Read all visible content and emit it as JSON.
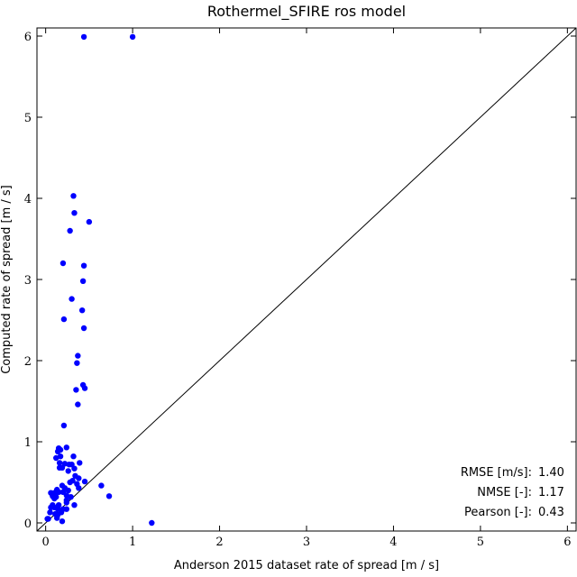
{
  "chart_data": {
    "type": "scatter",
    "title": "Rothermel_SFIRE ros model",
    "xlabel": "Anderson 2015 dataset rate of spread [m / s]",
    "ylabel": "Computed rate of spread [m / s]",
    "xlim": [
      -0.1,
      6.1
    ],
    "ylim": [
      -0.1,
      6.1
    ],
    "xticks": [
      "0",
      "1",
      "2",
      "3",
      "4",
      "5",
      "6"
    ],
    "yticks": [
      "0",
      "1",
      "2",
      "3",
      "4",
      "5",
      "6"
    ],
    "grid": false,
    "identity_line": true,
    "point_color": "#0000ff",
    "line_color": "#000000",
    "points": [
      [
        0.44,
        5.99
      ],
      [
        1.0,
        5.99
      ],
      [
        0.32,
        4.03
      ],
      [
        0.33,
        3.82
      ],
      [
        0.5,
        3.71
      ],
      [
        0.28,
        3.6
      ],
      [
        0.2,
        3.2
      ],
      [
        0.44,
        3.17
      ],
      [
        0.43,
        2.98
      ],
      [
        0.3,
        2.76
      ],
      [
        0.42,
        2.62
      ],
      [
        0.21,
        2.51
      ],
      [
        0.44,
        2.4
      ],
      [
        0.37,
        2.06
      ],
      [
        0.36,
        1.97
      ],
      [
        0.43,
        1.7
      ],
      [
        0.45,
        1.66
      ],
      [
        0.35,
        1.64
      ],
      [
        0.37,
        1.46
      ],
      [
        0.21,
        1.2
      ],
      [
        0.15,
        0.92
      ],
      [
        0.24,
        0.93
      ],
      [
        0.17,
        0.9
      ],
      [
        0.14,
        0.88
      ],
      [
        0.17,
        0.82
      ],
      [
        0.32,
        0.82
      ],
      [
        0.12,
        0.8
      ],
      [
        0.16,
        0.74
      ],
      [
        0.22,
        0.73
      ],
      [
        0.27,
        0.72
      ],
      [
        0.3,
        0.72
      ],
      [
        0.39,
        0.74
      ],
      [
        0.16,
        0.68
      ],
      [
        0.19,
        0.68
      ],
      [
        0.33,
        0.67
      ],
      [
        0.26,
        0.64
      ],
      [
        0.34,
        0.58
      ],
      [
        0.38,
        0.55
      ],
      [
        0.31,
        0.52
      ],
      [
        0.28,
        0.5
      ],
      [
        0.45,
        0.51
      ],
      [
        0.36,
        0.48
      ],
      [
        0.38,
        0.43
      ],
      [
        0.19,
        0.46
      ],
      [
        0.22,
        0.43
      ],
      [
        0.13,
        0.41
      ],
      [
        0.06,
        0.37
      ],
      [
        0.1,
        0.37
      ],
      [
        0.15,
        0.38
      ],
      [
        0.2,
        0.38
      ],
      [
        0.26,
        0.4
      ],
      [
        0.08,
        0.33
      ],
      [
        0.12,
        0.32
      ],
      [
        0.24,
        0.34
      ],
      [
        0.29,
        0.32
      ],
      [
        0.1,
        0.3
      ],
      [
        0.24,
        0.28
      ],
      [
        0.24,
        0.25
      ],
      [
        0.08,
        0.22
      ],
      [
        0.15,
        0.22
      ],
      [
        0.33,
        0.22
      ],
      [
        0.06,
        0.19
      ],
      [
        0.1,
        0.19
      ],
      [
        0.14,
        0.17
      ],
      [
        0.2,
        0.17
      ],
      [
        0.24,
        0.17
      ],
      [
        0.05,
        0.13
      ],
      [
        0.11,
        0.11
      ],
      [
        0.14,
        0.1
      ],
      [
        0.18,
        0.13
      ],
      [
        0.02,
        0.05
      ],
      [
        0.03,
        0.05
      ],
      [
        0.13,
        0.06
      ],
      [
        0.19,
        0.02
      ],
      [
        0.64,
        0.46
      ],
      [
        0.73,
        0.33
      ],
      [
        1.22,
        0.0
      ]
    ],
    "stats": [
      {
        "label": "RMSE [m/s]:",
        "value": "1.40"
      },
      {
        "label": "NMSE [-]:",
        "value": "1.17"
      },
      {
        "label": "Pearson [-]:",
        "value": "0.43"
      }
    ]
  }
}
